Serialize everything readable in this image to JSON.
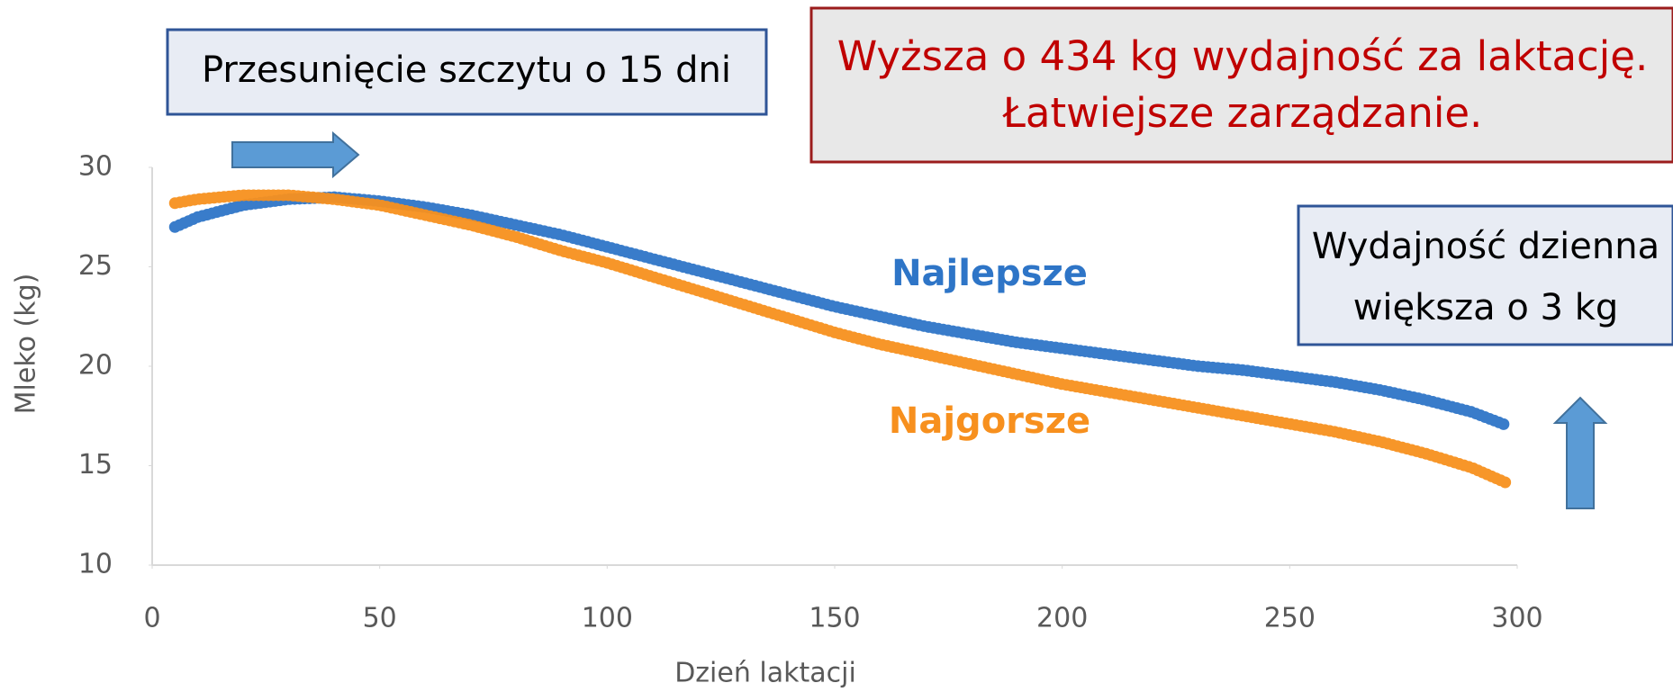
{
  "chart_data": {
    "type": "line",
    "x": [
      5,
      10,
      20,
      30,
      40,
      50,
      60,
      70,
      80,
      90,
      100,
      110,
      120,
      130,
      140,
      150,
      160,
      170,
      180,
      190,
      200,
      210,
      220,
      230,
      240,
      250,
      260,
      270,
      280,
      290,
      298
    ],
    "series": [
      {
        "name": "Najlepsze",
        "color": "#2e75c7",
        "values": [
          27.0,
          27.5,
          28.1,
          28.4,
          28.5,
          28.3,
          28.0,
          27.6,
          27.1,
          26.6,
          26.0,
          25.4,
          24.8,
          24.2,
          23.6,
          23.0,
          22.5,
          22.0,
          21.6,
          21.2,
          20.9,
          20.6,
          20.3,
          20.0,
          19.8,
          19.5,
          19.2,
          18.8,
          18.3,
          17.7,
          17.0
        ]
      },
      {
        "name": "Najgorsze",
        "color": "#f7901e",
        "values": [
          28.2,
          28.4,
          28.6,
          28.6,
          28.4,
          28.1,
          27.6,
          27.1,
          26.5,
          25.8,
          25.2,
          24.5,
          23.8,
          23.1,
          22.4,
          21.7,
          21.1,
          20.6,
          20.1,
          19.6,
          19.1,
          18.7,
          18.3,
          17.9,
          17.5,
          17.1,
          16.7,
          16.2,
          15.6,
          14.9,
          14.1
        ]
      }
    ],
    "xlabel": "Dzień laktacji",
    "ylabel": "Mleko (kg)",
    "xlim": [
      0,
      300
    ],
    "xticks": [
      0,
      50,
      100,
      150,
      200,
      250,
      300
    ],
    "ylim": [
      10,
      30
    ],
    "yticks": [
      10,
      15,
      20,
      25,
      30
    ],
    "annotations": [
      {
        "lines": [
          "Przesunięcie szczytu o 15 dni"
        ]
      },
      {
        "lines": [
          "Wyższa o 434 kg wydajność za laktację.",
          "Łatwiejsze zarządzanie."
        ]
      },
      {
        "lines": [
          "Wydajność dzienna",
          "większa o 3 kg"
        ]
      }
    ]
  }
}
